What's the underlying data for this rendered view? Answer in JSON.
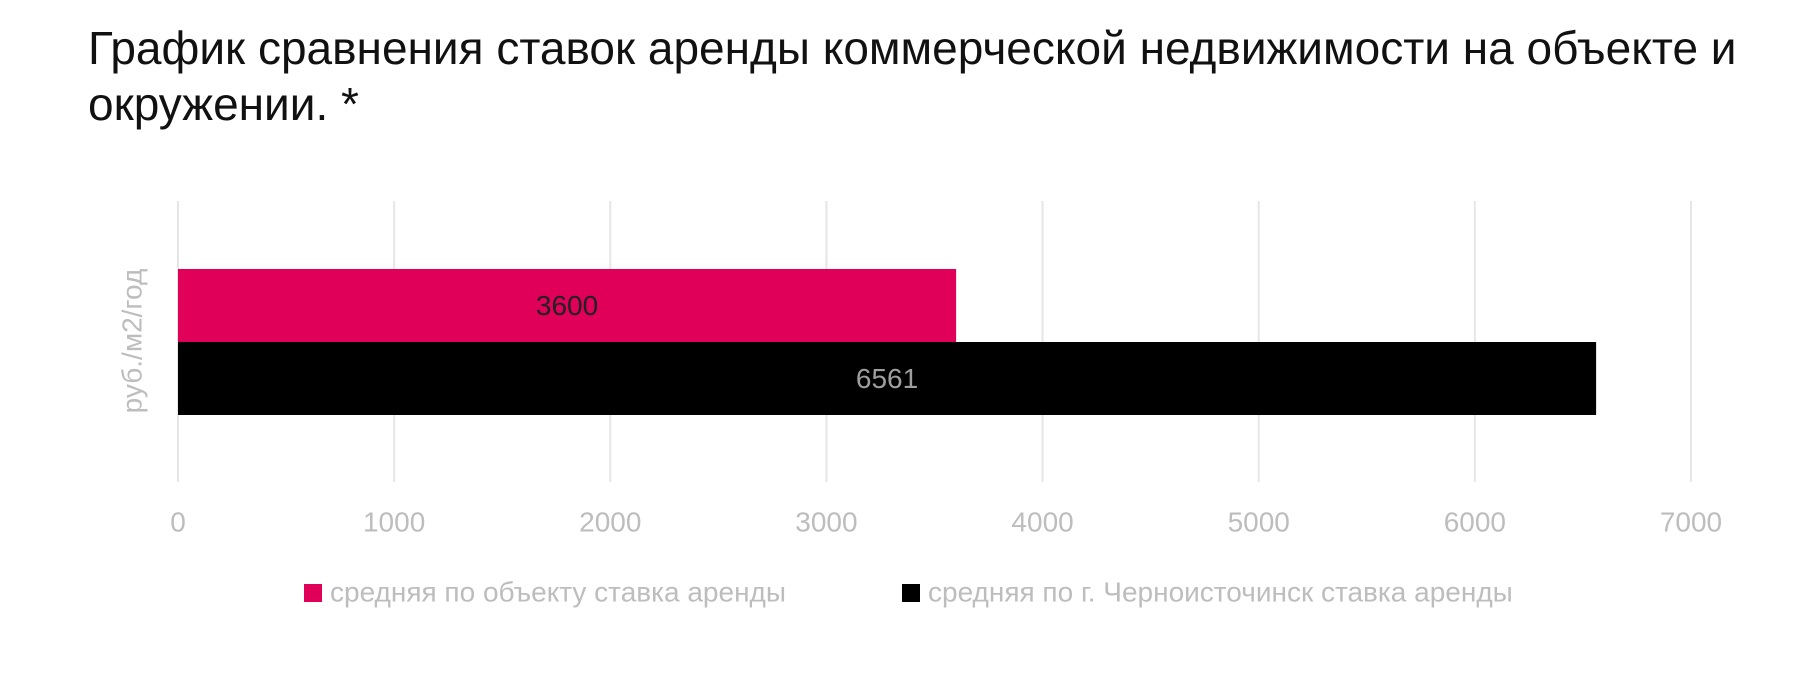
{
  "chart_data": {
    "type": "hbar",
    "title": "График сравнения ставок аренды коммерческой недвижимости на объек­те и окружении. *",
    "y_label": "руб./м2/год",
    "categories": [
      null
    ],
    "series": [
      {
        "name": "средняя по объекту ставка аренды",
        "color": "#e0005a",
        "label_color": "#222222",
        "values": [
          3600
        ]
      },
      {
        "name": "средняя по г. Черноисточинск ставка аренды",
        "color": "#000000",
        "label_color": "#9e9e9e",
        "values": [
          6561
        ]
      }
    ],
    "xlim": [
      0,
      7000
    ],
    "xticks": [
      0,
      1000,
      2000,
      3000,
      4000,
      5000,
      6000,
      7000
    ],
    "grid": true,
    "legend": "bottom"
  }
}
